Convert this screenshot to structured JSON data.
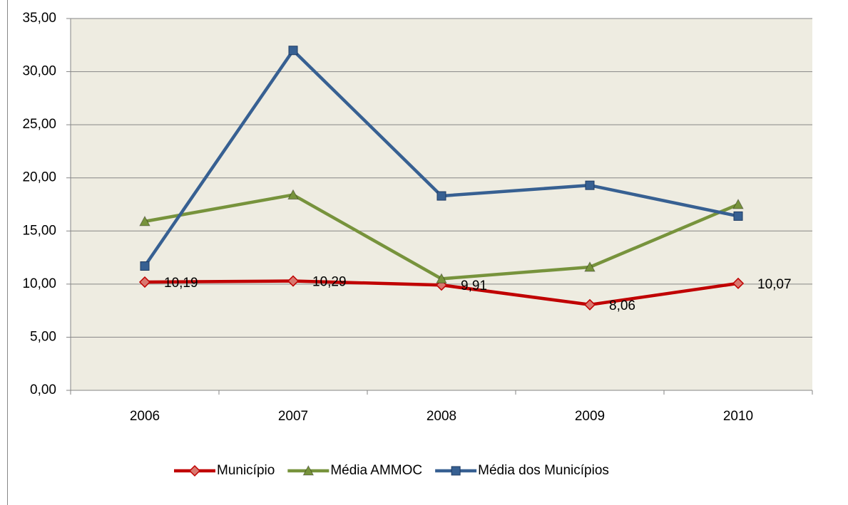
{
  "chart_data": {
    "type": "line",
    "categories": [
      "2006",
      "2007",
      "2008",
      "2009",
      "2010"
    ],
    "series": [
      {
        "name": "Município",
        "color": "#c00000",
        "marker": "diamond",
        "values": [
          10.19,
          10.29,
          9.91,
          8.06,
          10.07
        ],
        "value_labels": [
          "10,19",
          "10,29",
          "9,91",
          "8,06",
          "10,07"
        ]
      },
      {
        "name": "Média AMMOC",
        "color": "#77933c",
        "marker": "triangle",
        "values": [
          15.9,
          18.4,
          10.5,
          11.6,
          17.5
        ]
      },
      {
        "name": "Média dos Municípios",
        "color": "#376092",
        "marker": "square",
        "values": [
          11.7,
          32.0,
          18.3,
          19.3,
          16.4
        ]
      }
    ],
    "ylim": [
      0,
      35
    ],
    "yticks": [
      {
        "value": 0,
        "label": "0,00"
      },
      {
        "value": 5,
        "label": "5,00"
      },
      {
        "value": 10,
        "label": "10,00"
      },
      {
        "value": 15,
        "label": "15,00"
      },
      {
        "value": 20,
        "label": "20,00"
      },
      {
        "value": 25,
        "label": "25,00"
      },
      {
        "value": 30,
        "label": "30,00"
      },
      {
        "value": 35,
        "label": "35,00"
      }
    ],
    "grid": true,
    "plot_background": "#eeece1",
    "legend": "bottom"
  }
}
